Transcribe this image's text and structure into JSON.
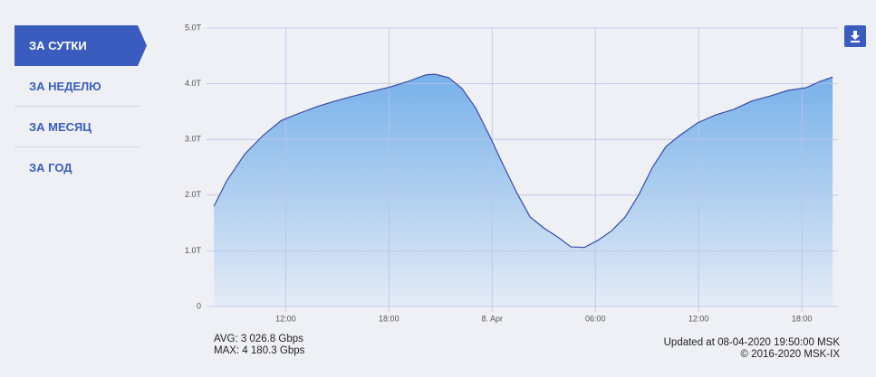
{
  "menu": {
    "items": [
      "ЗА СУТКИ",
      "ЗА НЕДЕЛЮ",
      "ЗА МЕСЯЦ",
      "ЗА ГОД"
    ]
  },
  "chart_data": {
    "type": "area",
    "x": [
      7.83,
      8.58,
      9.63,
      10.68,
      11.74,
      12.79,
      13.84,
      14.89,
      15.95,
      17.0,
      18.05,
      19.1,
      20.16,
      20.68,
      21.47,
      22.26,
      23.05,
      23.84,
      24.63,
      25.42,
      26.2,
      27.0,
      27.8,
      28.58,
      29.37,
      30.16,
      30.95,
      31.74,
      32.53,
      33.32,
      34.1,
      34.9,
      35.95,
      37.0,
      38.05,
      39.1,
      40.16,
      41.2,
      42.26,
      43.05,
      43.79
    ],
    "values": [
      1.8,
      2.26,
      2.74,
      3.07,
      3.34,
      3.47,
      3.59,
      3.69,
      3.78,
      3.86,
      3.94,
      4.04,
      4.16,
      4.17,
      4.11,
      3.91,
      3.56,
      3.07,
      2.55,
      2.05,
      1.61,
      1.41,
      1.25,
      1.07,
      1.06,
      1.19,
      1.36,
      1.61,
      2.01,
      2.5,
      2.87,
      3.07,
      3.3,
      3.44,
      3.54,
      3.69,
      3.78,
      3.88,
      3.93,
      4.04,
      4.12
    ],
    "color": "#3a4aa8",
    "xlim": [
      7.4,
      44.1
    ],
    "xticks": [
      {
        "value": 12,
        "label": "12:00"
      },
      {
        "value": 18,
        "label": "18:00"
      },
      {
        "value": 24,
        "label": "8. Apr"
      },
      {
        "value": 30,
        "label": "06:00"
      },
      {
        "value": 36,
        "label": "12:00"
      },
      {
        "value": 42,
        "label": "18:00"
      }
    ],
    "ylim": [
      0,
      5
    ],
    "yticks": [
      0,
      {
        "value": 1,
        "label": "1.0T"
      },
      {
        "value": 2,
        "label": "2.0T"
      },
      {
        "value": 3,
        "label": "3.0T"
      },
      {
        "value": 4,
        "label": "4.0T"
      },
      {
        "value": 5,
        "label": "5.0T"
      }
    ],
    "grid": true
  },
  "stats": {
    "avg": "AVG: 3 026.8 Gbps",
    "max": "MAX: 4 180.3 Gbps"
  },
  "footer": {
    "updated": "Updated at 08-04-2020 19:50:00 MSK",
    "copyright": "© 2016-2020 MSK-IX"
  }
}
